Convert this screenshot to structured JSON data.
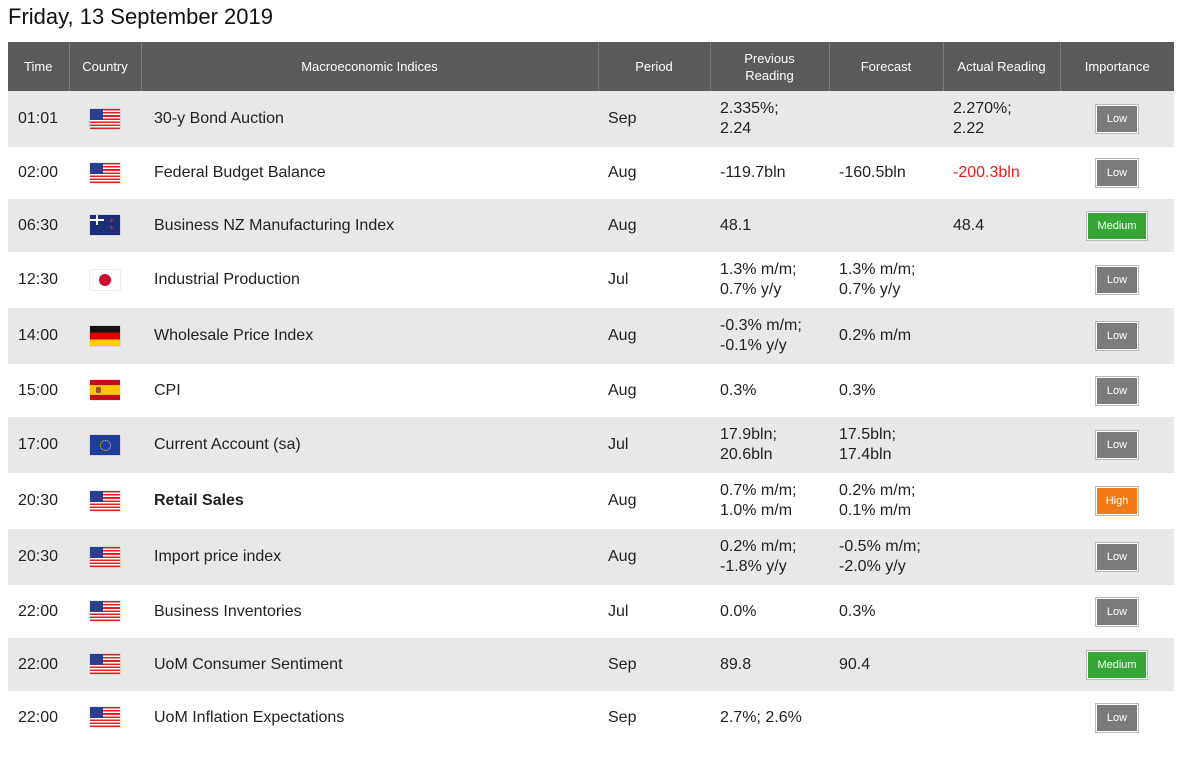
{
  "title": "Friday, 13 September 2019",
  "headers": {
    "time": "Time",
    "country": "Country",
    "index": "Macroeconomic Indices",
    "period": "Period",
    "previous_line1": "Previous",
    "previous_line2": "Reading",
    "forecast": "Forecast",
    "actual": "Actual Reading",
    "importance": "Importance"
  },
  "rows": [
    {
      "time": "01:01",
      "flag": "US",
      "country_icon": "flag-usa-icon",
      "index": "30-y Bond Auction",
      "period": "Sep",
      "prev1": "2.335%;",
      "prev2": "2.24",
      "fore1": "",
      "fore2": "",
      "act1": "2.270%;",
      "act2": "2.22",
      "importance": "Low"
    },
    {
      "time": "02:00",
      "flag": "US",
      "country_icon": "flag-usa-icon",
      "index": "Federal Budget Balance",
      "period": "Aug",
      "prev1": "-119.7bln",
      "prev2": "",
      "fore1": "-160.5bln",
      "fore2": "",
      "act1": "-200.3bln",
      "act2": "",
      "importance": "Low"
    },
    {
      "time": "06:30",
      "flag": "NZ",
      "country_icon": "flag-new-zealand-icon",
      "index": "Business NZ Manufacturing Index",
      "period": "Aug",
      "prev1": "48.1",
      "prev2": "",
      "fore1": "",
      "fore2": "",
      "act1": "48.4",
      "act2": "",
      "importance": "Medium"
    },
    {
      "time": "12:30",
      "flag": "JP",
      "country_icon": "flag-japan-icon",
      "index": "Industrial Production",
      "period": "Jul",
      "prev1": "1.3% m/m;",
      "prev2": "0.7% y/y",
      "fore1": "1.3% m/m;",
      "fore2": "0.7% y/y",
      "act1": "",
      "act2": "",
      "importance": "Low"
    },
    {
      "time": "14:00",
      "flag": "DE",
      "country_icon": "flag-germany-icon",
      "index": "Wholesale Price Index",
      "period": "Aug",
      "prev1": "-0.3% m/m;",
      "prev2": "-0.1% y/y",
      "fore1": "0.2% m/m",
      "fore2": "",
      "act1": "",
      "act2": "",
      "importance": "Low"
    },
    {
      "time": "15:00",
      "flag": "ES",
      "country_icon": "flag-spain-icon",
      "index": "CPI",
      "period": "Aug",
      "prev1": "0.3%",
      "prev2": "",
      "fore1": "0.3%",
      "fore2": "",
      "act1": "",
      "act2": "",
      "importance": "Low"
    },
    {
      "time": "17:00",
      "flag": "EU",
      "country_icon": "flag-eu-icon",
      "index": "Current Account (sa)",
      "period": "Jul",
      "prev1": "17.9bln;",
      "prev2": "20.6bln",
      "fore1": "17.5bln;",
      "fore2": "17.4bln",
      "act1": "",
      "act2": "",
      "importance": "Low"
    },
    {
      "time": "20:30",
      "flag": "US",
      "country_icon": "flag-usa-icon",
      "index": "Retail Sales",
      "period": "Aug",
      "prev1": "0.7% m/m;",
      "prev2": "1.0% m/m",
      "fore1": "0.2% m/m;",
      "fore2": "0.1% m/m",
      "act1": "",
      "act2": "",
      "importance": "High"
    },
    {
      "time": "20:30",
      "flag": "US",
      "country_icon": "flag-usa-icon",
      "index": "Import price index",
      "period": "Aug",
      "prev1": "0.2% m/m;",
      "prev2": "-1.8% y/y",
      "fore1": "-0.5% m/m;",
      "fore2": "-2.0% y/y",
      "act1": "",
      "act2": "",
      "importance": "Low"
    },
    {
      "time": "22:00",
      "flag": "US",
      "country_icon": "flag-usa-icon",
      "index": "Business Inventories",
      "period": "Jul",
      "prev1": "0.0%",
      "prev2": "",
      "fore1": "0.3%",
      "fore2": "",
      "act1": "",
      "act2": "",
      "importance": "Low"
    },
    {
      "time": "22:00",
      "flag": "US",
      "country_icon": "flag-usa-icon",
      "index": "UoM Consumer Sentiment",
      "period": "Sep",
      "prev1": "89.8",
      "prev2": "",
      "fore1": "90.4",
      "fore2": "",
      "act1": "",
      "act2": "",
      "importance": "Medium"
    },
    {
      "time": "22:00",
      "flag": "US",
      "country_icon": "flag-usa-icon",
      "index": "UoM Inflation Expectations",
      "period": "Sep",
      "prev1": "2.7%; 2.6%",
      "prev2": "",
      "fore1": "",
      "fore2": "",
      "act1": "",
      "act2": "",
      "importance": "Low"
    }
  ],
  "colors": {
    "header_bg": "#5a5a5a",
    "row_alt_bg": "#e8e8e8",
    "negative_actual": "#e02020",
    "importance_low": "#7b7b7b",
    "importance_medium": "#36a636",
    "importance_high": "#f07b18"
  }
}
